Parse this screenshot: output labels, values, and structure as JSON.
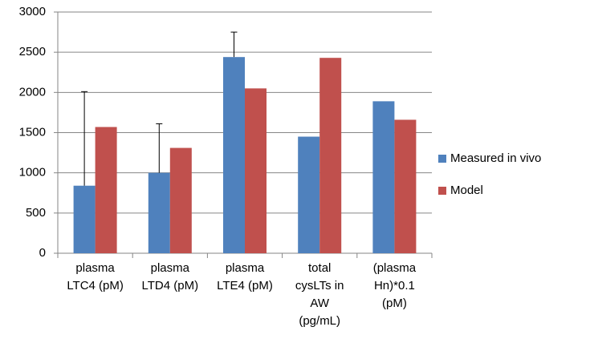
{
  "chart_data": {
    "type": "bar",
    "categories": [
      [
        "plasma",
        "LTC4 (pM)"
      ],
      [
        "plasma",
        "LTD4 (pM)"
      ],
      [
        "plasma",
        "LTE4 (pM)"
      ],
      [
        "total",
        "cysLTs in",
        "AW",
        "(pg/mL)"
      ],
      [
        "(plasma",
        "Hn)*0.1",
        "(pM)"
      ]
    ],
    "series": [
      {
        "name": "Measured in vivo",
        "color": "#4f81bd",
        "values": [
          840,
          1000,
          2440,
          1450,
          1890
        ],
        "errors": [
          1170,
          610,
          310,
          null,
          null
        ]
      },
      {
        "name": "Model",
        "color": "#c0504d",
        "values": [
          1570,
          1310,
          2050,
          2430,
          1660
        ]
      }
    ],
    "ylim": [
      0,
      3000
    ],
    "yticks": [
      0,
      500,
      1000,
      1500,
      2000,
      2500,
      3000
    ],
    "grid": true,
    "legend": "right"
  }
}
